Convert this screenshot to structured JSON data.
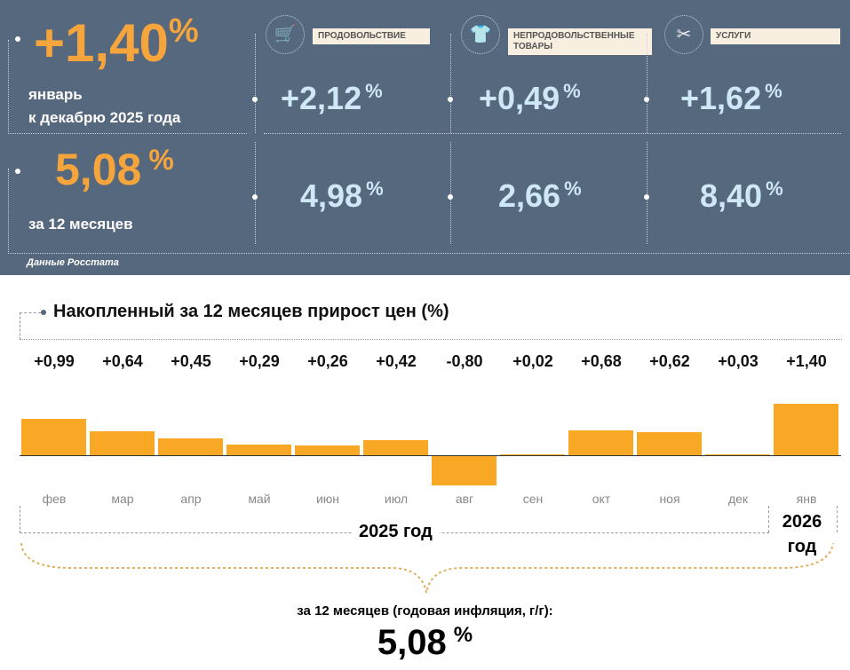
{
  "summary": {
    "monthly": "+1,40",
    "monthly_pct": "%",
    "monthly_caption1": "январь",
    "monthly_caption2": "к декабрю 2025 года",
    "annual": "5,08",
    "annual_pct": "%",
    "annual_caption": "за 12 месяцев",
    "source": "Данные Росстата"
  },
  "categories": [
    {
      "label": "ПРОДОВОЛЬСТВИЕ",
      "icon": "shopping-cart-icon",
      "monthly": "+2,12",
      "annual": "4,98"
    },
    {
      "label": "НЕПРОДОВОЛЬСТВЕННЫЕ ТОВАРЫ",
      "icon": "clothing-icon",
      "monthly": "+0,49",
      "annual": "2,66"
    },
    {
      "label": "УСЛУГИ",
      "icon": "scissors-icon",
      "monthly": "+1,62",
      "annual": "8,40"
    }
  ],
  "pct": "%",
  "chart_data": {
    "type": "bar",
    "title": "Накопленный за 12 месяцев прирост цен (%)",
    "categories": [
      "фев",
      "мар",
      "апр",
      "май",
      "июн",
      "июл",
      "авг",
      "сен",
      "окт",
      "ноя",
      "дек",
      "янв"
    ],
    "values": [
      0.99,
      0.64,
      0.45,
      0.29,
      0.26,
      0.42,
      -0.8,
      0.02,
      0.68,
      0.62,
      0.03,
      1.4
    ],
    "value_labels": [
      "+0,99",
      "+0,64",
      "+0,45",
      "+0,29",
      "+0,26",
      "+0,42",
      "-0,80",
      "+0,02",
      "+0,68",
      "+0,62",
      "+0,03",
      "+1,40"
    ],
    "color": "#f9a825",
    "year_2025": "2025 год",
    "year_2026_a": "2026",
    "year_2026_b": "год",
    "footer_caption": "за 12 месяцев (годовая инфляция, г/г):",
    "footer_value": "5,08",
    "footer_pct": "%"
  }
}
